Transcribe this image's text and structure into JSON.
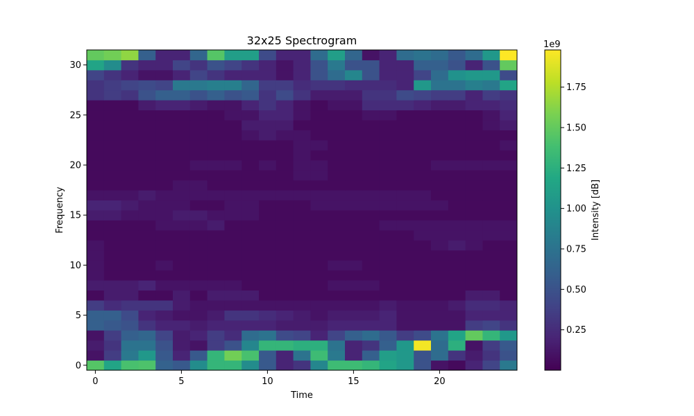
{
  "chart_data": {
    "type": "heatmap",
    "title": "32x25 Spectrogram",
    "xlabel": "Time",
    "ylabel": "Frequency",
    "colorbar": {
      "label": "Intensity [dB]",
      "scale_label": "1e9",
      "ticks": [
        0.25,
        0.5,
        0.75,
        1.0,
        1.25,
        1.5,
        1.75
      ],
      "tick_labels": [
        "0.25",
        "0.50",
        "0.75",
        "1.00",
        "1.25",
        "1.50",
        "1.75"
      ],
      "range": [
        0.0,
        1.98
      ],
      "colormap": "viridis"
    },
    "x_ticks": [
      0,
      5,
      10,
      15,
      20
    ],
    "y_ticks": [
      0,
      5,
      10,
      15,
      20,
      25,
      30
    ],
    "xlim": [
      -0.5,
      24.5
    ],
    "ylim": [
      -0.5,
      31.5
    ],
    "n_time": 25,
    "n_freq": 32,
    "z_rows_by_frequency": [
      [
        1.45,
        1.15,
        1.4,
        1.42,
        0.62,
        0.55,
        0.95,
        1.3,
        1.3,
        0.95,
        0.55,
        0.2,
        0.3,
        0.9,
        1.35,
        1.35,
        1.3,
        1.15,
        1.05,
        0.5,
        0.1,
        0.05,
        0.2,
        0.4,
        0.8
      ],
      [
        0.1,
        0.35,
        0.8,
        1.05,
        0.55,
        0.2,
        0.55,
        1.3,
        1.55,
        1.4,
        0.55,
        0.2,
        0.75,
        1.35,
        0.8,
        0.2,
        0.6,
        1.1,
        1.05,
        0.5,
        0.7,
        0.3,
        0.15,
        0.3,
        0.5
      ],
      [
        0.15,
        0.3,
        0.75,
        0.75,
        0.5,
        0.15,
        0.1,
        0.35,
        0.5,
        0.9,
        1.3,
        1.3,
        1.25,
        1.25,
        0.75,
        0.2,
        0.3,
        0.6,
        1.05,
        1.95,
        0.7,
        1.25,
        0.1,
        0.35,
        0.55
      ],
      [
        0.1,
        0.35,
        0.6,
        0.65,
        0.4,
        0.15,
        0.2,
        0.35,
        0.25,
        0.7,
        0.75,
        0.45,
        0.4,
        0.2,
        0.4,
        0.6,
        0.7,
        0.55,
        0.35,
        0.45,
        0.75,
        1.15,
        1.5,
        1.3,
        1.05
      ],
      [
        0.6,
        0.55,
        0.5,
        0.3,
        0.2,
        0.2,
        0.15,
        0.2,
        0.2,
        0.2,
        0.2,
        0.15,
        0.15,
        0.15,
        0.2,
        0.2,
        0.2,
        0.2,
        0.1,
        0.1,
        0.1,
        0.1,
        0.35,
        0.4,
        0.3
      ],
      [
        0.6,
        0.6,
        0.45,
        0.2,
        0.15,
        0.1,
        0.1,
        0.15,
        0.3,
        0.3,
        0.25,
        0.2,
        0.15,
        0.1,
        0.15,
        0.15,
        0.15,
        0.2,
        0.1,
        0.1,
        0.1,
        0.1,
        0.2,
        0.2,
        0.2
      ],
      [
        0.35,
        0.25,
        0.3,
        0.3,
        0.3,
        0.15,
        0.1,
        0.1,
        0.1,
        0.1,
        0.1,
        0.1,
        0.1,
        0.1,
        0.1,
        0.1,
        0.1,
        0.15,
        0.1,
        0.1,
        0.1,
        0.15,
        0.25,
        0.25,
        0.2
      ],
      [
        0.05,
        0.15,
        0.15,
        0.05,
        0.05,
        0.15,
        0.05,
        0.15,
        0.15,
        0.15,
        0.05,
        0.05,
        0.05,
        0.05,
        0.05,
        0.05,
        0.05,
        0.05,
        0.05,
        0.05,
        0.05,
        0.05,
        0.15,
        0.15,
        0.05
      ],
      [
        0.15,
        0.15,
        0.15,
        0.2,
        0.1,
        0.1,
        0.1,
        0.1,
        0.1,
        0.05,
        0.05,
        0.05,
        0.05,
        0.05,
        0.1,
        0.1,
        0.1,
        0.05,
        0.05,
        0.05,
        0.05,
        0.05,
        0.05,
        0.05,
        0.05
      ],
      [
        0.1,
        0.05,
        0.05,
        0.05,
        0.05,
        0.05,
        0.05,
        0.05,
        0.05,
        0.05,
        0.05,
        0.05,
        0.05,
        0.05,
        0.05,
        0.05,
        0.05,
        0.05,
        0.05,
        0.05,
        0.05,
        0.05,
        0.05,
        0.05,
        0.05
      ],
      [
        0.1,
        0.05,
        0.05,
        0.05,
        0.1,
        0.05,
        0.05,
        0.05,
        0.05,
        0.05,
        0.05,
        0.05,
        0.05,
        0.05,
        0.1,
        0.1,
        0.05,
        0.05,
        0.05,
        0.05,
        0.05,
        0.05,
        0.05,
        0.05,
        0.05
      ],
      [
        0.1,
        0.05,
        0.05,
        0.05,
        0.05,
        0.05,
        0.05,
        0.05,
        0.05,
        0.05,
        0.05,
        0.05,
        0.05,
        0.05,
        0.05,
        0.05,
        0.05,
        0.05,
        0.05,
        0.05,
        0.05,
        0.05,
        0.05,
        0.05,
        0.05
      ],
      [
        0.1,
        0.05,
        0.05,
        0.05,
        0.05,
        0.05,
        0.05,
        0.05,
        0.05,
        0.05,
        0.05,
        0.05,
        0.05,
        0.05,
        0.05,
        0.05,
        0.05,
        0.05,
        0.05,
        0.05,
        0.1,
        0.15,
        0.1,
        0.05,
        0.05
      ],
      [
        0.05,
        0.05,
        0.05,
        0.05,
        0.05,
        0.05,
        0.05,
        0.05,
        0.05,
        0.05,
        0.05,
        0.05,
        0.05,
        0.05,
        0.05,
        0.05,
        0.05,
        0.05,
        0.05,
        0.1,
        0.1,
        0.1,
        0.1,
        0.1,
        0.1
      ],
      [
        0.05,
        0.05,
        0.05,
        0.05,
        0.1,
        0.1,
        0.1,
        0.15,
        0.05,
        0.05,
        0.05,
        0.05,
        0.05,
        0.05,
        0.05,
        0.05,
        0.05,
        0.1,
        0.1,
        0.1,
        0.1,
        0.1,
        0.1,
        0.1,
        0.1
      ],
      [
        0.15,
        0.15,
        0.1,
        0.1,
        0.1,
        0.15,
        0.15,
        0.1,
        0.1,
        0.1,
        0.05,
        0.05,
        0.05,
        0.05,
        0.05,
        0.05,
        0.05,
        0.05,
        0.05,
        0.05,
        0.05,
        0.05,
        0.05,
        0.05,
        0.05
      ],
      [
        0.2,
        0.2,
        0.15,
        0.1,
        0.1,
        0.1,
        0.05,
        0.05,
        0.1,
        0.1,
        0.05,
        0.05,
        0.05,
        0.1,
        0.1,
        0.1,
        0.1,
        0.1,
        0.1,
        0.1,
        0.1,
        0.05,
        0.05,
        0.05,
        0.05
      ],
      [
        0.1,
        0.1,
        0.1,
        0.15,
        0.1,
        0.1,
        0.1,
        0.1,
        0.1,
        0.1,
        0.1,
        0.1,
        0.1,
        0.1,
        0.1,
        0.1,
        0.1,
        0.1,
        0.1,
        0.1,
        0.05,
        0.05,
        0.05,
        0.05,
        0.05
      ],
      [
        0.05,
        0.05,
        0.05,
        0.05,
        0.05,
        0.1,
        0.1,
        0.05,
        0.05,
        0.05,
        0.05,
        0.05,
        0.05,
        0.05,
        0.05,
        0.05,
        0.05,
        0.05,
        0.05,
        0.05,
        0.05,
        0.05,
        0.05,
        0.05,
        0.05
      ],
      [
        0.05,
        0.05,
        0.05,
        0.05,
        0.05,
        0.05,
        0.05,
        0.05,
        0.05,
        0.05,
        0.05,
        0.05,
        0.1,
        0.1,
        0.05,
        0.05,
        0.05,
        0.05,
        0.05,
        0.05,
        0.05,
        0.05,
        0.05,
        0.05,
        0.05
      ],
      [
        0.05,
        0.05,
        0.05,
        0.05,
        0.05,
        0.05,
        0.1,
        0.1,
        0.1,
        0.05,
        0.1,
        0.05,
        0.1,
        0.1,
        0.05,
        0.05,
        0.05,
        0.05,
        0.05,
        0.05,
        0.1,
        0.1,
        0.1,
        0.1,
        0.1
      ],
      [
        0.05,
        0.05,
        0.05,
        0.05,
        0.05,
        0.05,
        0.05,
        0.05,
        0.05,
        0.05,
        0.05,
        0.05,
        0.1,
        0.05,
        0.05,
        0.05,
        0.05,
        0.05,
        0.05,
        0.05,
        0.05,
        0.05,
        0.05,
        0.05,
        0.05
      ],
      [
        0.05,
        0.05,
        0.05,
        0.05,
        0.05,
        0.05,
        0.05,
        0.05,
        0.05,
        0.05,
        0.05,
        0.05,
        0.1,
        0.1,
        0.05,
        0.05,
        0.05,
        0.05,
        0.05,
        0.05,
        0.05,
        0.05,
        0.05,
        0.05,
        0.1
      ],
      [
        0.05,
        0.05,
        0.05,
        0.05,
        0.05,
        0.05,
        0.05,
        0.05,
        0.05,
        0.1,
        0.15,
        0.1,
        0.1,
        0.05,
        0.05,
        0.05,
        0.05,
        0.05,
        0.05,
        0.05,
        0.05,
        0.05,
        0.05,
        0.05,
        0.05
      ],
      [
        0.05,
        0.05,
        0.05,
        0.05,
        0.05,
        0.05,
        0.05,
        0.05,
        0.05,
        0.15,
        0.15,
        0.15,
        0.05,
        0.05,
        0.05,
        0.05,
        0.05,
        0.05,
        0.05,
        0.05,
        0.05,
        0.05,
        0.05,
        0.1,
        0.15
      ],
      [
        0.05,
        0.05,
        0.05,
        0.05,
        0.05,
        0.05,
        0.05,
        0.05,
        0.1,
        0.1,
        0.2,
        0.2,
        0.1,
        0.05,
        0.05,
        0.05,
        0.1,
        0.1,
        0.05,
        0.05,
        0.05,
        0.05,
        0.05,
        0.1,
        0.2
      ],
      [
        0.05,
        0.05,
        0.05,
        0.15,
        0.2,
        0.2,
        0.15,
        0.1,
        0.1,
        0.2,
        0.3,
        0.2,
        0.1,
        0.05,
        0.1,
        0.1,
        0.25,
        0.25,
        0.25,
        0.2,
        0.15,
        0.15,
        0.2,
        0.2,
        0.25
      ],
      [
        0.3,
        0.35,
        0.3,
        0.5,
        0.6,
        0.6,
        0.5,
        0.6,
        0.5,
        0.55,
        0.3,
        0.45,
        0.3,
        0.15,
        0.15,
        0.15,
        0.3,
        0.3,
        0.45,
        0.4,
        0.35,
        0.35,
        0.2,
        0.35,
        0.3
      ],
      [
        0.3,
        0.35,
        0.4,
        0.45,
        0.4,
        0.8,
        0.8,
        0.85,
        0.85,
        0.65,
        0.35,
        0.35,
        0.25,
        0.3,
        0.3,
        0.25,
        0.25,
        0.25,
        0.2,
        1.05,
        0.75,
        0.75,
        0.85,
        0.8,
        1.15
      ],
      [
        0.4,
        0.3,
        0.2,
        0.1,
        0.1,
        0.2,
        0.4,
        0.3,
        0.2,
        0.2,
        0.2,
        0.1,
        0.2,
        0.5,
        0.7,
        0.9,
        0.5,
        0.2,
        0.2,
        0.4,
        0.7,
        1.0,
        1.05,
        1.05,
        0.45
      ],
      [
        1.15,
        0.95,
        0.3,
        0.2,
        0.2,
        0.4,
        0.3,
        0.5,
        0.4,
        0.3,
        0.2,
        0.1,
        0.2,
        0.5,
        0.8,
        0.5,
        0.5,
        0.2,
        0.2,
        0.6,
        0.6,
        0.5,
        0.2,
        0.5,
        1.5
      ],
      [
        1.5,
        1.55,
        1.65,
        0.6,
        0.2,
        0.2,
        0.65,
        1.45,
        1.1,
        1.1,
        0.45,
        0.2,
        0.2,
        0.7,
        1.1,
        0.65,
        0.1,
        0.2,
        0.7,
        0.75,
        0.7,
        0.55,
        0.7,
        1.05,
        1.98
      ]
    ]
  }
}
